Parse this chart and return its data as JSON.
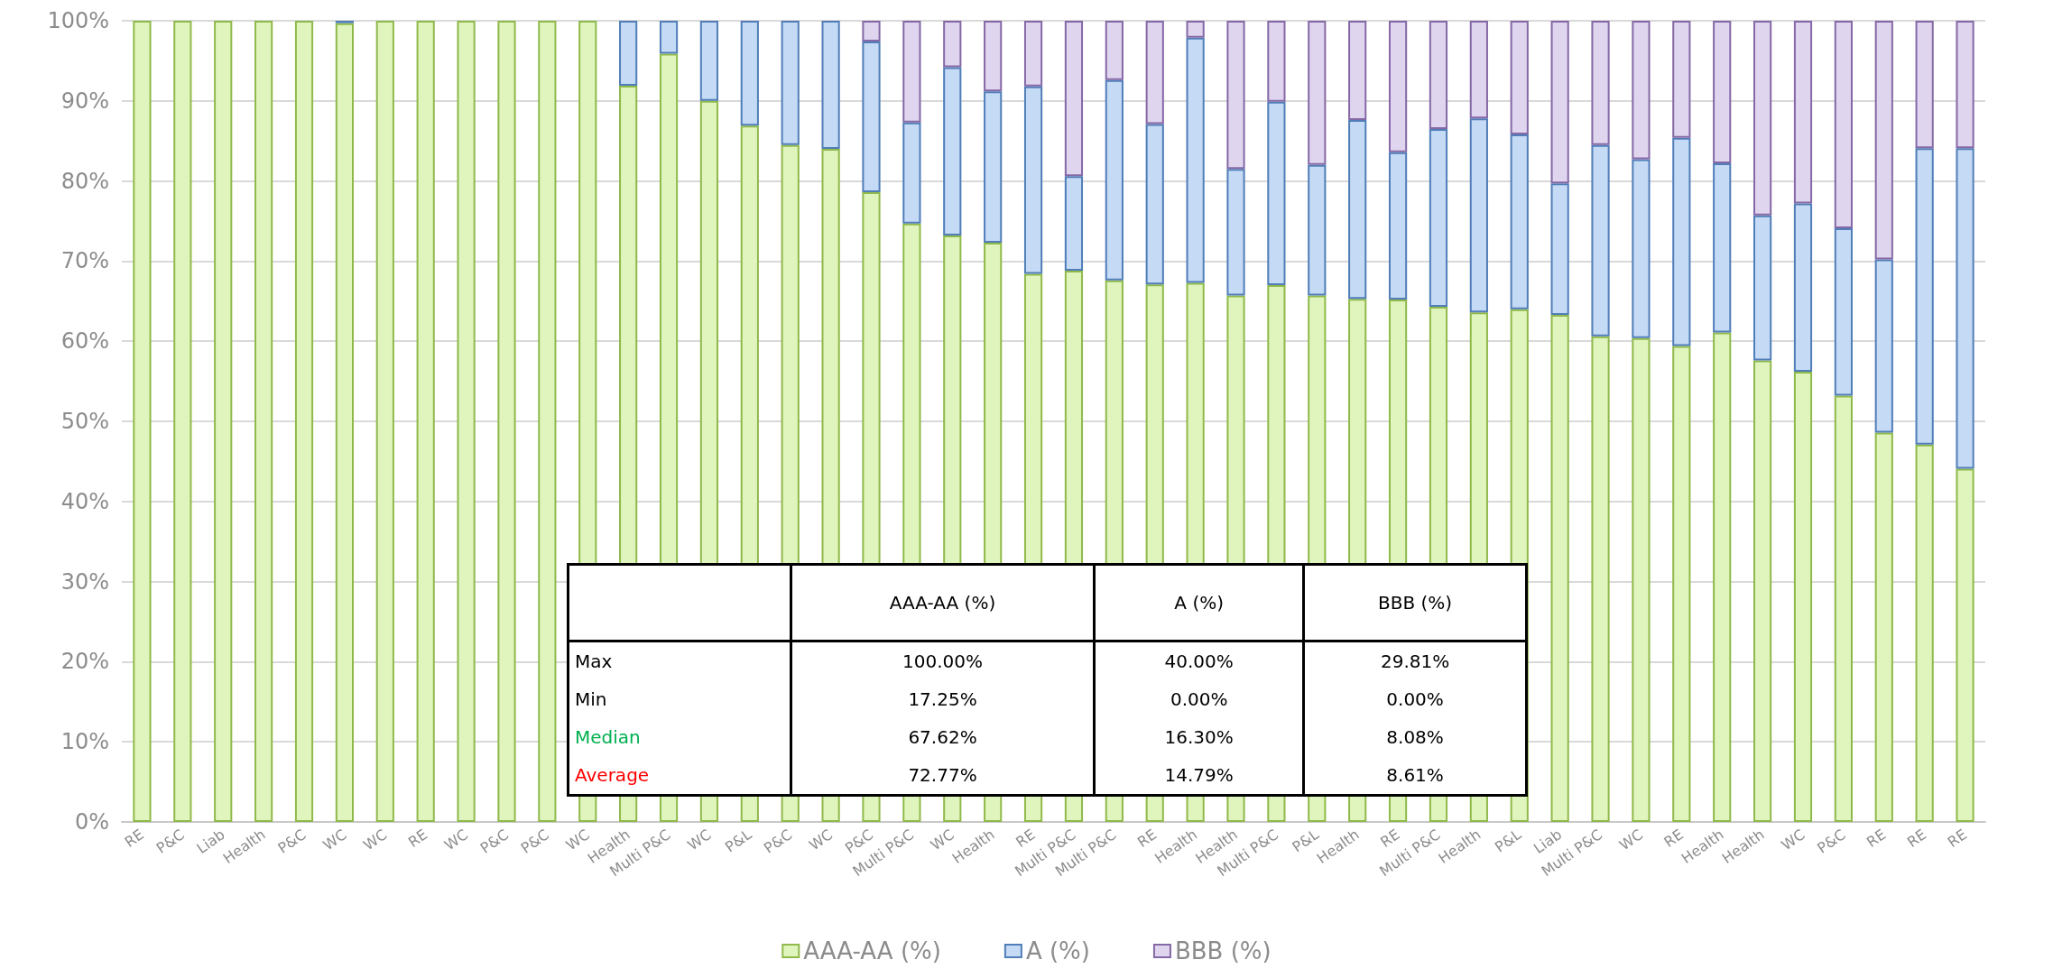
{
  "chart_data": {
    "type": "bar",
    "stacked": true,
    "categories": [
      "RE",
      "P&C",
      "Liab",
      "Health",
      "P&C",
      "WC",
      "WC",
      "RE",
      "WC",
      "P&C",
      "P&C",
      "WC",
      "Health",
      "Multi P&C",
      "WC",
      "P&L",
      "P&C",
      "WC",
      "P&C",
      "Multi P&C",
      "WC",
      "Health",
      "RE",
      "Multi P&C",
      "Multi P&C",
      "RE",
      "Health",
      "Health",
      "Multi P&C",
      "P&L",
      "Health",
      "RE",
      "Multi P&C",
      "Health",
      "P&L",
      "Liab",
      "Multi P&C",
      "WC",
      "RE",
      "Health",
      "Health",
      "WC",
      "P&C",
      "RE",
      "RE",
      "RE"
    ],
    "series": [
      {
        "name": "AAA-AA (%)",
        "color": "#e0f5bd",
        "values": [
          100,
          100,
          100,
          100,
          100,
          99.7,
          100,
          100,
          100,
          100,
          100,
          100,
          91.9,
          95.9,
          90,
          86.9,
          84.5,
          84.0,
          78.6,
          74.7,
          73.2,
          72.3,
          68.4,
          68.8,
          67.6,
          67.1,
          67.3,
          65.7,
          67.0,
          65.7,
          65.3,
          65.2,
          64.3,
          63.6,
          64.0,
          63.3,
          60.6,
          60.4,
          59.4,
          61.1,
          57.6,
          56.2,
          53.2,
          48.6,
          47.1,
          44.1
        ]
      },
      {
        "name": "A (%)",
        "color": "#c5daf5",
        "values": [
          null,
          null,
          null,
          null,
          null,
          0.3,
          null,
          null,
          null,
          null,
          null,
          null,
          8.1,
          4.1,
          10,
          13.1,
          15.5,
          16.0,
          18.8,
          12.6,
          21.0,
          18.9,
          23.4,
          11.8,
          25.0,
          20.0,
          30.6,
          15.8,
          22.9,
          16.3,
          22.3,
          18.4,
          22.2,
          24.2,
          21.8,
          16.4,
          23.9,
          22.3,
          26.0,
          21.1,
          18.1,
          21.0,
          20.9,
          21.6,
          37.0,
          40.0
        ]
      },
      {
        "name": "BBB (%)",
        "color": "#e0d5ee",
        "values": [
          null,
          null,
          null,
          null,
          null,
          null,
          null,
          null,
          null,
          null,
          null,
          null,
          null,
          null,
          null,
          null,
          null,
          null,
          2.6,
          12.7,
          5.8,
          8.8,
          8.2,
          19.4,
          7.4,
          12.9,
          2.1,
          18.5,
          10.1,
          18.0,
          12.4,
          16.4,
          13.5,
          12.2,
          14.2,
          20.3,
          15.5,
          17.3,
          14.6,
          17.8,
          24.3,
          22.8,
          25.9,
          29.8,
          15.9,
          15.9
        ]
      }
    ],
    "ylim": [
      0,
      100
    ],
    "yticks": [
      {
        "value": 0,
        "label": "0%"
      },
      {
        "value": 10,
        "label": "10%"
      },
      {
        "value": 20,
        "label": "20%"
      },
      {
        "value": 30,
        "label": "30%"
      },
      {
        "value": 40,
        "label": "40%"
      },
      {
        "value": 50,
        "label": "50%"
      },
      {
        "value": 60,
        "label": "60%"
      },
      {
        "value": 70,
        "label": "70%"
      },
      {
        "value": 80,
        "label": "80%"
      },
      {
        "value": 90,
        "label": "90%"
      },
      {
        "value": 100,
        "label": "100%"
      }
    ],
    "grid": "y",
    "legend": "bottom",
    "annotations": [
      "AAA-AA (%)",
      "A (%)",
      "BBB (%)",
      "Max",
      "100.00%",
      "40.00%",
      "29.81%",
      "Min",
      "17.25%",
      "0.00%",
      "0.00%",
      "Median",
      "67.62%",
      "16.30%",
      "8.08%",
      "Average",
      "72.77%",
      "14.79%",
      "8.61%"
    ]
  }
}
